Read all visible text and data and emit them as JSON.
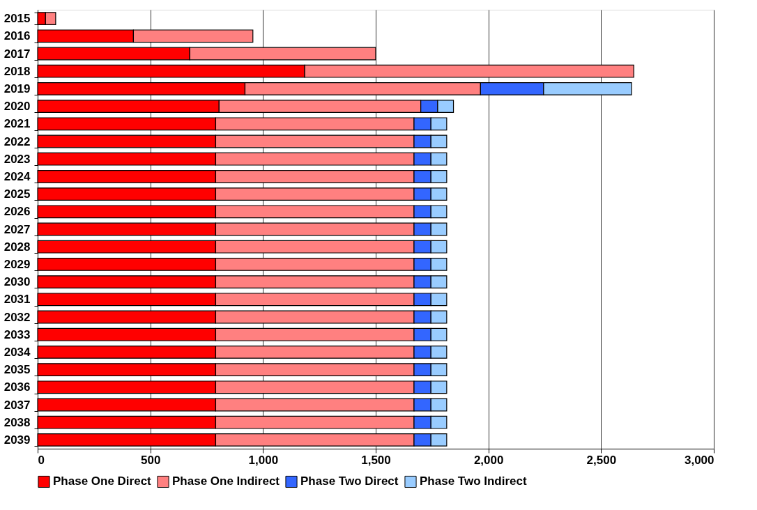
{
  "chart_data": {
    "type": "bar",
    "orientation": "horizontal",
    "stacked": true,
    "categories": [
      "2015",
      "2016",
      "2017",
      "2018",
      "2019",
      "2020",
      "2021",
      "2022",
      "2023",
      "2024",
      "2025",
      "2026",
      "2027",
      "2028",
      "2029",
      "2030",
      "2031",
      "2032",
      "2033",
      "2034",
      "2035",
      "2036",
      "2037",
      "2038",
      "2039"
    ],
    "series": [
      {
        "name": "Phase One Direct",
        "color": "#ff0000",
        "values": [
          35,
          425,
          675,
          1185,
          920,
          805,
          790,
          790,
          790,
          790,
          790,
          790,
          790,
          790,
          790,
          790,
          790,
          790,
          790,
          790,
          790,
          790,
          790,
          790,
          790
        ]
      },
      {
        "name": "Phase One Indirect",
        "color": "#ff8080",
        "values": [
          45,
          530,
          825,
          1460,
          1045,
          895,
          880,
          880,
          880,
          880,
          880,
          880,
          880,
          880,
          880,
          880,
          880,
          880,
          880,
          880,
          880,
          880,
          880,
          880,
          880
        ]
      },
      {
        "name": "Phase Two Direct",
        "color": "#3366ff",
        "values": [
          null,
          null,
          null,
          null,
          280,
          75,
          75,
          75,
          75,
          75,
          75,
          75,
          75,
          75,
          75,
          75,
          75,
          75,
          75,
          75,
          75,
          75,
          75,
          75,
          75
        ]
      },
      {
        "name": "Phase Two Indirect",
        "color": "#99ccff",
        "values": [
          null,
          null,
          null,
          null,
          390,
          70,
          70,
          70,
          70,
          70,
          70,
          70,
          70,
          70,
          70,
          70,
          70,
          70,
          70,
          70,
          70,
          70,
          70,
          70,
          70
        ]
      }
    ],
    "xlim": [
      0,
      3000
    ],
    "xticks": [
      {
        "value": 0,
        "label": "0"
      },
      {
        "value": 500,
        "label": "500"
      },
      {
        "value": 1000,
        "label": "1,000"
      },
      {
        "value": 1500,
        "label": "1,500"
      },
      {
        "value": 2000,
        "label": "2,000"
      },
      {
        "value": 2500,
        "label": "2,500"
      },
      {
        "value": 3000,
        "label": "3,000"
      }
    ],
    "grid": "x",
    "legend": "bottom"
  }
}
